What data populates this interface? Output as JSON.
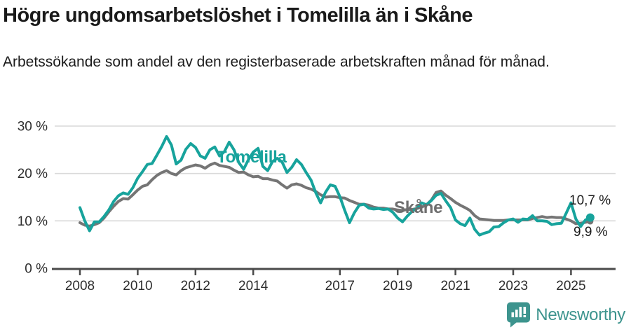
{
  "header": {
    "title": "Högre ungdomsarbetslöshet i Tomelilla än i Skåne",
    "subtitle": "Arbetssökande som andel av den registerbaserade arbetskraften månad för månad."
  },
  "chart_data": {
    "type": "line",
    "title": "Högre ungdomsarbetslöshet i Tomelilla än i Skåne",
    "subtitle": "Arbetssökande som andel av den registerbaserade arbetskraften månad för månad.",
    "unit": "%",
    "grid": "horizontal-only",
    "legend_position": "inline-labels-on-lines",
    "x_axis": {
      "tick_years": [
        2008,
        2010,
        2012,
        2014,
        2017,
        2019,
        2021,
        2023,
        2025
      ],
      "range": [
        2008.0,
        2025.67
      ]
    },
    "y_axis": {
      "ticks": [
        {
          "value": 0,
          "label": "0 %"
        },
        {
          "value": 10,
          "label": "10 %"
        },
        {
          "value": 20,
          "label": "20 %"
        },
        {
          "value": 30,
          "label": "30 %"
        }
      ],
      "range": [
        0,
        32
      ]
    },
    "sampling": {
      "start_year": 2008,
      "points_per_year": 6,
      "note": "values every 2nd month, Jan 2008 - Sep 2025"
    },
    "series": [
      {
        "name": "Skåne",
        "color": "#757575",
        "end_value": 9.9,
        "end_label": "9,9 %",
        "values": [
          9.6,
          9.1,
          8.9,
          9.2,
          9.6,
          10.6,
          11.9,
          13.1,
          14.1,
          14.7,
          14.6,
          15.5,
          16.5,
          17.3,
          17.6,
          18.7,
          19.6,
          20.2,
          20.6,
          20.0,
          19.7,
          20.6,
          21.2,
          21.5,
          21.8,
          21.6,
          21.1,
          21.8,
          22.2,
          21.7,
          21.5,
          21.3,
          20.7,
          20.2,
          20.3,
          19.7,
          19.3,
          19.4,
          18.9,
          18.9,
          18.6,
          18.4,
          17.6,
          16.9,
          17.6,
          17.8,
          17.5,
          17.0,
          16.7,
          16.2,
          15.5,
          15.0,
          15.1,
          15.1,
          14.9,
          14.8,
          14.3,
          13.9,
          13.5,
          13.5,
          13.3,
          12.9,
          12.7,
          12.7,
          12.5,
          12.5,
          12.3,
          12.2,
          12.4,
          12.4,
          12.6,
          12.9,
          13.4,
          14.4,
          16.0,
          16.3,
          15.4,
          14.7,
          13.9,
          13.3,
          12.8,
          12.2,
          11.1,
          10.4,
          10.3,
          10.2,
          10.1,
          10.1,
          10.1,
          10.2,
          10.2,
          10.2,
          10.2,
          10.2,
          10.5,
          10.7,
          10.9,
          10.7,
          10.8,
          10.7,
          10.7,
          10.4,
          10.0,
          9.4,
          9.5,
          9.7,
          9.9
        ]
      },
      {
        "name": "Tomelilla",
        "color": "#17a39c",
        "end_value": 10.7,
        "end_label": "10,7 %",
        "values": [
          12.8,
          10.0,
          7.9,
          9.8,
          9.8,
          10.9,
          12.3,
          14.1,
          15.3,
          15.9,
          15.6,
          17.0,
          19.0,
          20.4,
          21.9,
          22.1,
          23.9,
          25.7,
          27.8,
          26.0,
          22.0,
          22.8,
          25.1,
          26.3,
          25.5,
          23.7,
          23.2,
          25.0,
          25.6,
          23.7,
          24.6,
          26.6,
          25.0,
          22.3,
          20.9,
          22.9,
          24.5,
          25.3,
          21.5,
          20.6,
          22.5,
          23.2,
          22.4,
          20.2,
          21.3,
          22.9,
          21.9,
          20.2,
          18.6,
          15.9,
          13.8,
          16.0,
          17.6,
          17.3,
          15.1,
          12.2,
          9.6,
          11.7,
          13.3,
          13.5,
          12.7,
          12.5,
          12.6,
          12.4,
          12.5,
          11.8,
          10.6,
          9.8,
          11.0,
          12.0,
          12.7,
          13.8,
          13.4,
          14.3,
          15.4,
          15.8,
          14.2,
          12.8,
          10.2,
          9.4,
          9.0,
          10.6,
          8.2,
          7.0,
          7.4,
          7.7,
          8.7,
          8.8,
          9.6,
          10.2,
          10.4,
          9.7,
          10.4,
          10.3,
          11.1,
          10.0,
          10.0,
          9.9,
          9.2,
          9.4,
          9.5,
          11.6,
          13.8,
          10.4,
          8.8,
          10.2,
          10.7
        ]
      }
    ]
  },
  "footer": {
    "brand": "Newsworthy",
    "brand_color": "#3d948e",
    "logo_icon": "bar-chart-speech-bubble"
  }
}
